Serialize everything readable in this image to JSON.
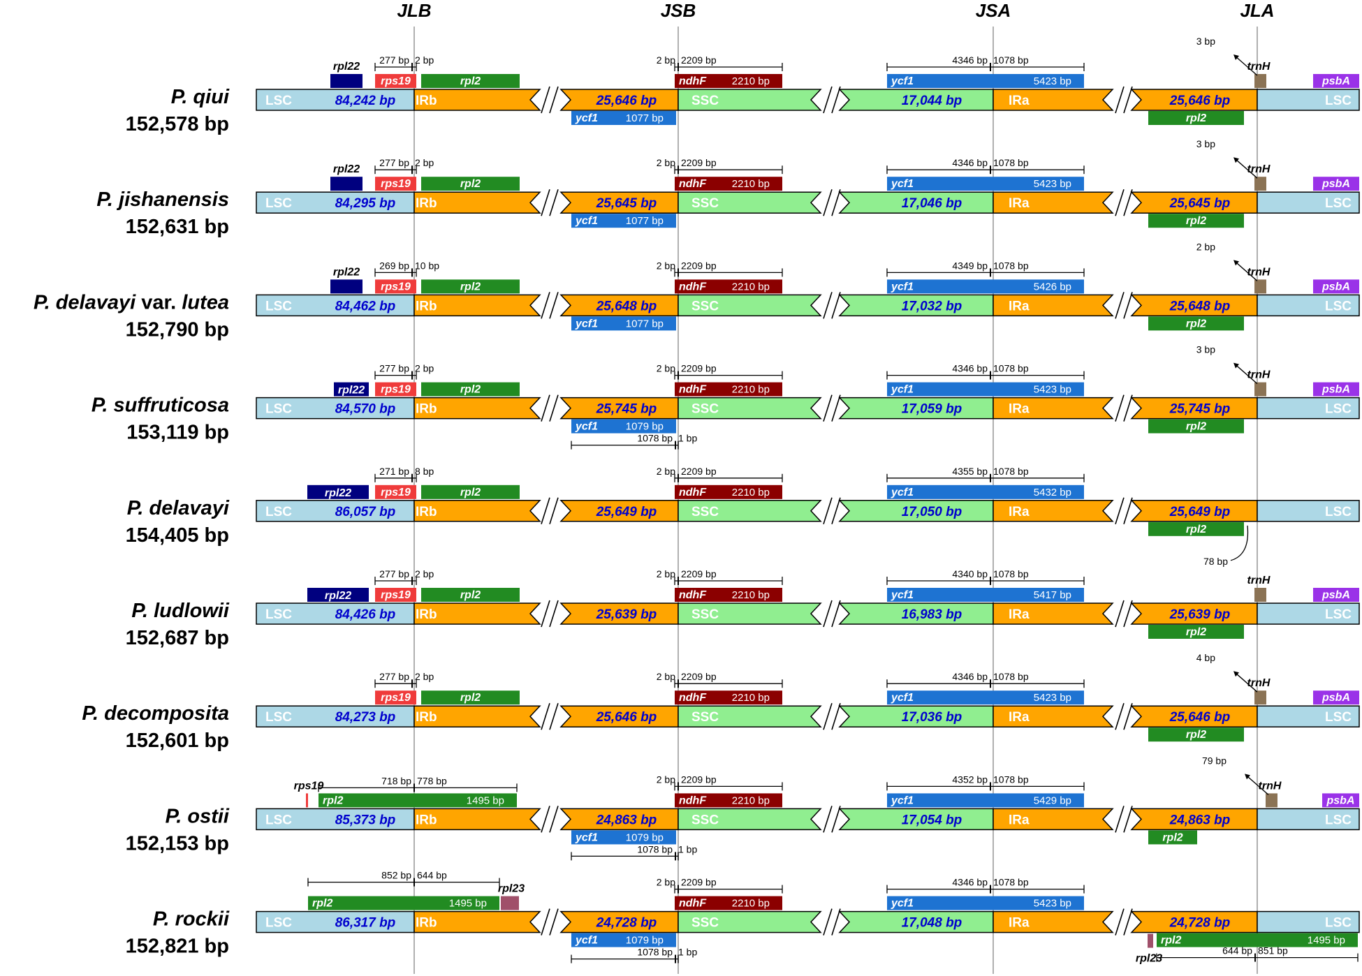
{
  "junctions": [
    "JLB",
    "JSB",
    "JSA",
    "JLA"
  ],
  "region_names": {
    "lsc": "LSC",
    "irb": "IRb",
    "ssc": "SSC",
    "ira": "IRa"
  },
  "colors": {
    "lsc": "#add8e6",
    "ir": "#ffa500",
    "ssc": "#90ee90",
    "rpl22": "#00007f",
    "rps19": "#ef3b3b",
    "rpl2": "#228b22",
    "ndhF": "#8b0000",
    "ycf1": "#1e73d2",
    "trnH": "#8b7355",
    "psbA": "#9a32e8",
    "rpl23": "#a0506a",
    "region_text": "#0000cd"
  },
  "species": [
    {
      "name": "P. qiui",
      "name_parts": [
        {
          "t": "P. qiui",
          "i": true
        }
      ],
      "size": "152,578 bp",
      "lsc": "84,242 bp",
      "irb": "25,646 bp",
      "ssc": "17,044 bp",
      "ira": "25,646 bp",
      "rps19_left": "277 bp",
      "rps19_right": "2 bp",
      "ndhF_left": "2 bp",
      "ndhF_right": "2209 bp",
      "ndhF_len": "2210 bp",
      "ycf1b_len": "1077 bp",
      "ycf1a_left": "4346 bp",
      "ycf1a_right": "1078 bp",
      "ycf1a_len": "5423 bp",
      "trnH_gap": "3 bp"
    },
    {
      "name": "P. jishanensis",
      "name_parts": [
        {
          "t": "P.  jishanensis",
          "i": true
        }
      ],
      "size": "152,631 bp",
      "lsc": "84,295 bp",
      "irb": "25,645 bp",
      "ssc": "17,046 bp",
      "ira": "25,645 bp",
      "rps19_left": "277 bp",
      "rps19_right": "2 bp",
      "ndhF_left": "2 bp",
      "ndhF_right": "2209 bp",
      "ndhF_len": "2210 bp",
      "ycf1b_len": "1077 bp",
      "ycf1a_left": "4346 bp",
      "ycf1a_right": "1078 bp",
      "ycf1a_len": "5423 bp",
      "trnH_gap": "3 bp"
    },
    {
      "name": "P. delavayi var. lutea",
      "name_parts": [
        {
          "t": "P. delavayi",
          "i": true
        },
        {
          "t": " var. ",
          "i": false
        },
        {
          "t": "lutea",
          "i": true
        }
      ],
      "size": "152,790 bp",
      "lsc": "84,462 bp",
      "irb": "25,648 bp",
      "ssc": "17,032 bp",
      "ira": "25,648 bp",
      "rps19_left": "269 bp",
      "rps19_right": "10 bp",
      "ndhF_left": "2 bp",
      "ndhF_right": "2209 bp",
      "ndhF_len": "2210 bp",
      "ycf1b_len": "1077 bp",
      "ycf1a_left": "4349 bp",
      "ycf1a_right": "1078 bp",
      "ycf1a_len": "5426 bp",
      "trnH_gap": "2 bp"
    },
    {
      "name": "P. suffruticosa",
      "name_parts": [
        {
          "t": "P. suffruticosa",
          "i": true
        }
      ],
      "size": "153,119 bp",
      "lsc": "84,570 bp",
      "irb": "25,745 bp",
      "ssc": "17,059 bp",
      "ira": "25,745 bp",
      "rps19_left": "277 bp",
      "rps19_right": "2 bp",
      "ndhF_left": "2 bp",
      "ndhF_right": "2209 bp",
      "ndhF_len": "2210 bp",
      "ycf1b_len": "1079 bp",
      "ycf1b_left": "1078 bp",
      "ycf1b_right": "1 bp",
      "ycf1a_left": "4346 bp",
      "ycf1a_right": "1078 bp",
      "ycf1a_len": "5423 bp",
      "trnH_gap": "3 bp"
    },
    {
      "name": "P. delavayi",
      "name_parts": [
        {
          "t": "P. delavayi",
          "i": true
        }
      ],
      "size": "154,405 bp",
      "lsc": "86,057 bp",
      "irb": "25,649 bp",
      "ssc": "17,050 bp",
      "ira": "25,649 bp",
      "rps19_left": "271 bp",
      "rps19_right": "8 bp",
      "ndhF_left": "2 bp",
      "ndhF_right": "2209 bp",
      "ndhF_len": "2210 bp",
      "ycf1b_len": "",
      "ycf1a_left": "4355 bp",
      "ycf1a_right": "1078 bp",
      "ycf1a_len": "5432 bp",
      "rpl2_gap": "78 bp"
    },
    {
      "name": "P. ludlowii",
      "name_parts": [
        {
          "t": "P. ludlowii",
          "i": true
        }
      ],
      "size": "152,687 bp",
      "lsc": "84,426 bp",
      "irb": "25,639 bp",
      "ssc": "16,983 bp",
      "ira": "25,639 bp",
      "rps19_left": "277 bp",
      "rps19_right": "2 bp",
      "ndhF_left": "2 bp",
      "ndhF_right": "2209 bp",
      "ndhF_len": "2210 bp",
      "ycf1b_len": "",
      "ycf1a_left": "4340 bp",
      "ycf1a_right": "1078 bp",
      "ycf1a_len": "5417 bp"
    },
    {
      "name": "P. decomposita",
      "name_parts": [
        {
          "t": "P. decomposita",
          "i": true
        }
      ],
      "size": "152,601 bp",
      "lsc": "84,273 bp",
      "irb": "25,646 bp",
      "ssc": "17,036 bp",
      "ira": "25,646 bp",
      "rps19_left": "277 bp",
      "rps19_right": "2 bp",
      "ndhF_left": "2 bp",
      "ndhF_right": "2209 bp",
      "ndhF_len": "2210 bp",
      "ycf1b_len": "",
      "ycf1a_left": "4346 bp",
      "ycf1a_right": "1078 bp",
      "ycf1a_len": "5423 bp",
      "trnH_gap": "4 bp"
    },
    {
      "name": "P. ostii",
      "name_parts": [
        {
          "t": "P. ostii",
          "i": true
        }
      ],
      "size": "152,153 bp",
      "lsc": "85,373 bp",
      "irb": "24,863 bp",
      "ssc": "17,054 bp",
      "ira": "24,863 bp",
      "rpl2_left": "718 bp",
      "rpl2_right": "778 bp",
      "rpl2_len": "1495 bp",
      "ndhF_left": "2 bp",
      "ndhF_right": "2209 bp",
      "ndhF_len": "2210 bp",
      "ycf1b_len": "1079 bp",
      "ycf1b_left": "1078 bp",
      "ycf1b_right": "1 bp",
      "ycf1a_left": "4352 bp",
      "ycf1a_right": "1078 bp",
      "ycf1a_len": "5429 bp",
      "trnH_gap": "79 bp"
    },
    {
      "name": "P. rockii",
      "name_parts": [
        {
          "t": "P. rockii",
          "i": true
        }
      ],
      "size": "152,821 bp",
      "lsc": "86,317 bp",
      "irb": "24,728 bp",
      "ssc": "17,048 bp",
      "ira": "24,728 bp",
      "rpl2_left": "852 bp",
      "rpl2_right": "644 bp",
      "rpl2_len": "1495 bp",
      "ndhF_left": "2 bp",
      "ndhF_right": "2209 bp",
      "ndhF_len": "2210 bp",
      "ycf1b_len": "1079 bp",
      "ycf1b_left": "1078 bp",
      "ycf1b_right": "1 bp",
      "ycf1a_left": "4346 bp",
      "ycf1a_right": "1078 bp",
      "ycf1a_len": "5423 bp",
      "rpl2a_left": "644 bp",
      "rpl2a_right": "851 bp",
      "rpl2a_len": "1495 bp"
    }
  ],
  "gene_names": {
    "rpl22": "rpl22",
    "rps19": "rps19",
    "rpl2": "rpl2",
    "ndhF": "ndhF",
    "ycf1": "ycf1",
    "trnH": "trnH",
    "psbA": "psbA",
    "rpl23": "rpl23"
  }
}
